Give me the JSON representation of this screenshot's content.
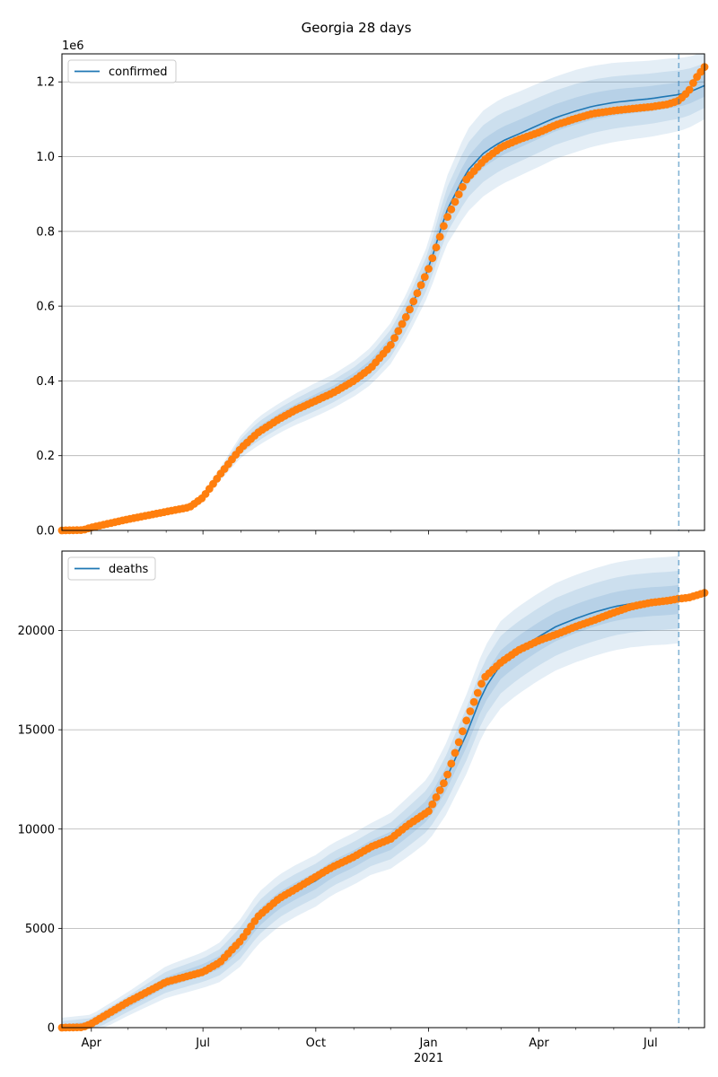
{
  "title": "Georgia 28 days",
  "colors": {
    "model": "#1f77b4",
    "observed": "#ff7f0e",
    "band": "#1f77b4",
    "grid": "#b0b0b0",
    "forecast_line": "#1f77b4"
  },
  "chart_data": [
    {
      "type": "line",
      "legend": "confirmed",
      "legend_position": "top-left",
      "ylim": [
        0,
        1275000
      ],
      "yticks": [
        0,
        200000,
        400000,
        600000,
        800000,
        1000000,
        1200000
      ],
      "ytick_labels": [
        "0.0",
        "0.2",
        "0.4",
        "0.6",
        "0.8",
        "1.0",
        "1.2"
      ],
      "y_offset_label": "1e6",
      "grid": "horizontal",
      "forecast_start": "2021-07-24",
      "model": {
        "x": [
          "2020-03-08",
          "2020-04-01",
          "2020-05-01",
          "2020-06-01",
          "2020-06-20",
          "2020-07-01",
          "2020-07-15",
          "2020-08-01",
          "2020-08-15",
          "2020-09-01",
          "2020-09-15",
          "2020-10-01",
          "2020-10-15",
          "2020-11-01",
          "2020-11-15",
          "2020-12-01",
          "2020-12-15",
          "2021-01-01",
          "2021-01-15",
          "2021-02-01",
          "2021-02-15",
          "2021-03-01",
          "2021-03-15",
          "2021-04-01",
          "2021-04-15",
          "2021-05-01",
          "2021-05-15",
          "2021-06-01",
          "2021-06-15",
          "2021-07-01",
          "2021-07-15",
          "2021-07-24",
          "2021-08-01",
          "2021-08-14"
        ],
        "y": [
          0,
          8000,
          30000,
          50000,
          62000,
          90000,
          150000,
          225000,
          265000,
          300000,
          325000,
          350000,
          372000,
          405000,
          440000,
          500000,
          580000,
          700000,
          850000,
          960000,
          1010000,
          1040000,
          1060000,
          1085000,
          1105000,
          1122000,
          1135000,
          1145000,
          1150000,
          1155000,
          1162000,
          1166000,
          1172000,
          1190000
        ],
        "band_width": [
          0,
          2000,
          5000,
          7000,
          9000,
          10000,
          17000,
          30000,
          38000,
          40000,
          42000,
          45000,
          45000,
          47000,
          50000,
          55000,
          60000,
          70000,
          90000,
          110000,
          115000,
          115000,
          113000,
          112000,
          110000,
          110000,
          108000,
          106000,
          104000,
          102000,
          100000,
          98000,
          95000,
          90000
        ]
      },
      "observed": {
        "x": [
          "2020-03-08",
          "2020-03-25",
          "2020-04-01",
          "2020-05-01",
          "2020-06-01",
          "2020-06-20",
          "2020-07-01",
          "2020-07-15",
          "2020-08-01",
          "2020-08-15",
          "2020-09-01",
          "2020-09-15",
          "2020-10-01",
          "2020-10-15",
          "2020-11-01",
          "2020-11-15",
          "2020-12-01",
          "2020-12-15",
          "2021-01-01",
          "2021-01-15",
          "2021-02-01",
          "2021-02-15",
          "2021-03-01",
          "2021-03-15",
          "2021-04-01",
          "2021-04-15",
          "2021-05-01",
          "2021-05-15",
          "2021-06-01",
          "2021-06-15",
          "2021-07-01",
          "2021-07-15",
          "2021-07-24",
          "2021-08-01",
          "2021-08-07",
          "2021-08-14"
        ],
        "y": [
          0,
          1000,
          8000,
          30000,
          50000,
          62000,
          88000,
          150000,
          220000,
          262000,
          298000,
          323000,
          347000,
          368000,
          400000,
          435000,
          495000,
          580000,
          700000,
          830000,
          940000,
          990000,
          1025000,
          1045000,
          1065000,
          1085000,
          1102000,
          1115000,
          1123000,
          1128000,
          1133000,
          1140000,
          1150000,
          1175000,
          1210000,
          1240000
        ]
      }
    },
    {
      "type": "line",
      "legend": "deaths",
      "legend_position": "top-left",
      "ylim": [
        0,
        24000
      ],
      "yticks": [
        0,
        5000,
        10000,
        15000,
        20000
      ],
      "ytick_labels": [
        "0",
        "5000",
        "10000",
        "15000",
        "20000"
      ],
      "grid": "horizontal",
      "forecast_start": "2021-07-24",
      "xticks": [
        "2020-04-01",
        "2020-07-01",
        "2020-10-01",
        "2021-01-01",
        "2021-04-01",
        "2021-07-01"
      ],
      "xtick_labels": [
        "Apr",
        "Jul",
        "Oct",
        "Jan",
        "Apr",
        "Jul"
      ],
      "x_year_label": "2021",
      "xlim": [
        "2020-03-08",
        "2021-08-14"
      ],
      "model": {
        "x": [
          "2020-03-08",
          "2020-04-01",
          "2020-05-01",
          "2020-06-01",
          "2020-07-01",
          "2020-07-15",
          "2020-08-01",
          "2020-08-15",
          "2020-09-01",
          "2020-09-15",
          "2020-10-01",
          "2020-10-15",
          "2020-11-01",
          "2020-11-15",
          "2020-12-01",
          "2020-12-15",
          "2021-01-01",
          "2021-01-15",
          "2021-02-01",
          "2021-02-15",
          "2021-03-01",
          "2021-03-15",
          "2021-04-01",
          "2021-04-15",
          "2021-05-01",
          "2021-05-15",
          "2021-06-01",
          "2021-06-15",
          "2021-07-01",
          "2021-07-15",
          "2021-07-24"
        ],
        "y": [
          0,
          150,
          1200,
          2300,
          2900,
          3300,
          4300,
          5500,
          6400,
          6900,
          7400,
          8000,
          8500,
          9000,
          9400,
          10100,
          11000,
          12500,
          14800,
          17000,
          18300,
          19000,
          19700,
          20200,
          20600,
          20900,
          21200,
          21350,
          21450,
          21500,
          21560
        ],
        "band_width": [
          500,
          500,
          600,
          800,
          900,
          1000,
          1200,
          1300,
          1300,
          1300,
          1300,
          1300,
          1300,
          1300,
          1400,
          1500,
          1600,
          1800,
          2000,
          2100,
          2200,
          2200,
          2200,
          2200,
          2200,
          2200,
          2200,
          2200,
          2200,
          2200,
          2200
        ]
      },
      "observed": {
        "x": [
          "2020-03-08",
          "2020-03-25",
          "2020-04-01",
          "2020-05-01",
          "2020-06-01",
          "2020-07-01",
          "2020-07-15",
          "2020-08-01",
          "2020-08-15",
          "2020-09-01",
          "2020-09-15",
          "2020-10-01",
          "2020-10-15",
          "2020-11-01",
          "2020-11-15",
          "2020-12-01",
          "2020-12-15",
          "2021-01-01",
          "2021-01-15",
          "2021-02-01",
          "2021-02-15",
          "2021-03-01",
          "2021-03-15",
          "2021-04-01",
          "2021-04-15",
          "2021-05-01",
          "2021-05-15",
          "2021-06-01",
          "2021-06-15",
          "2021-07-01",
          "2021-07-15",
          "2021-07-24",
          "2021-08-01",
          "2021-08-14"
        ],
        "y": [
          0,
          20,
          200,
          1300,
          2300,
          2800,
          3300,
          4400,
          5600,
          6500,
          7000,
          7600,
          8100,
          8600,
          9100,
          9500,
          10200,
          10900,
          12500,
          15500,
          17600,
          18400,
          19000,
          19500,
          19800,
          20200,
          20500,
          20900,
          21200,
          21400,
          21500,
          21600,
          21650,
          21900
        ]
      }
    }
  ]
}
